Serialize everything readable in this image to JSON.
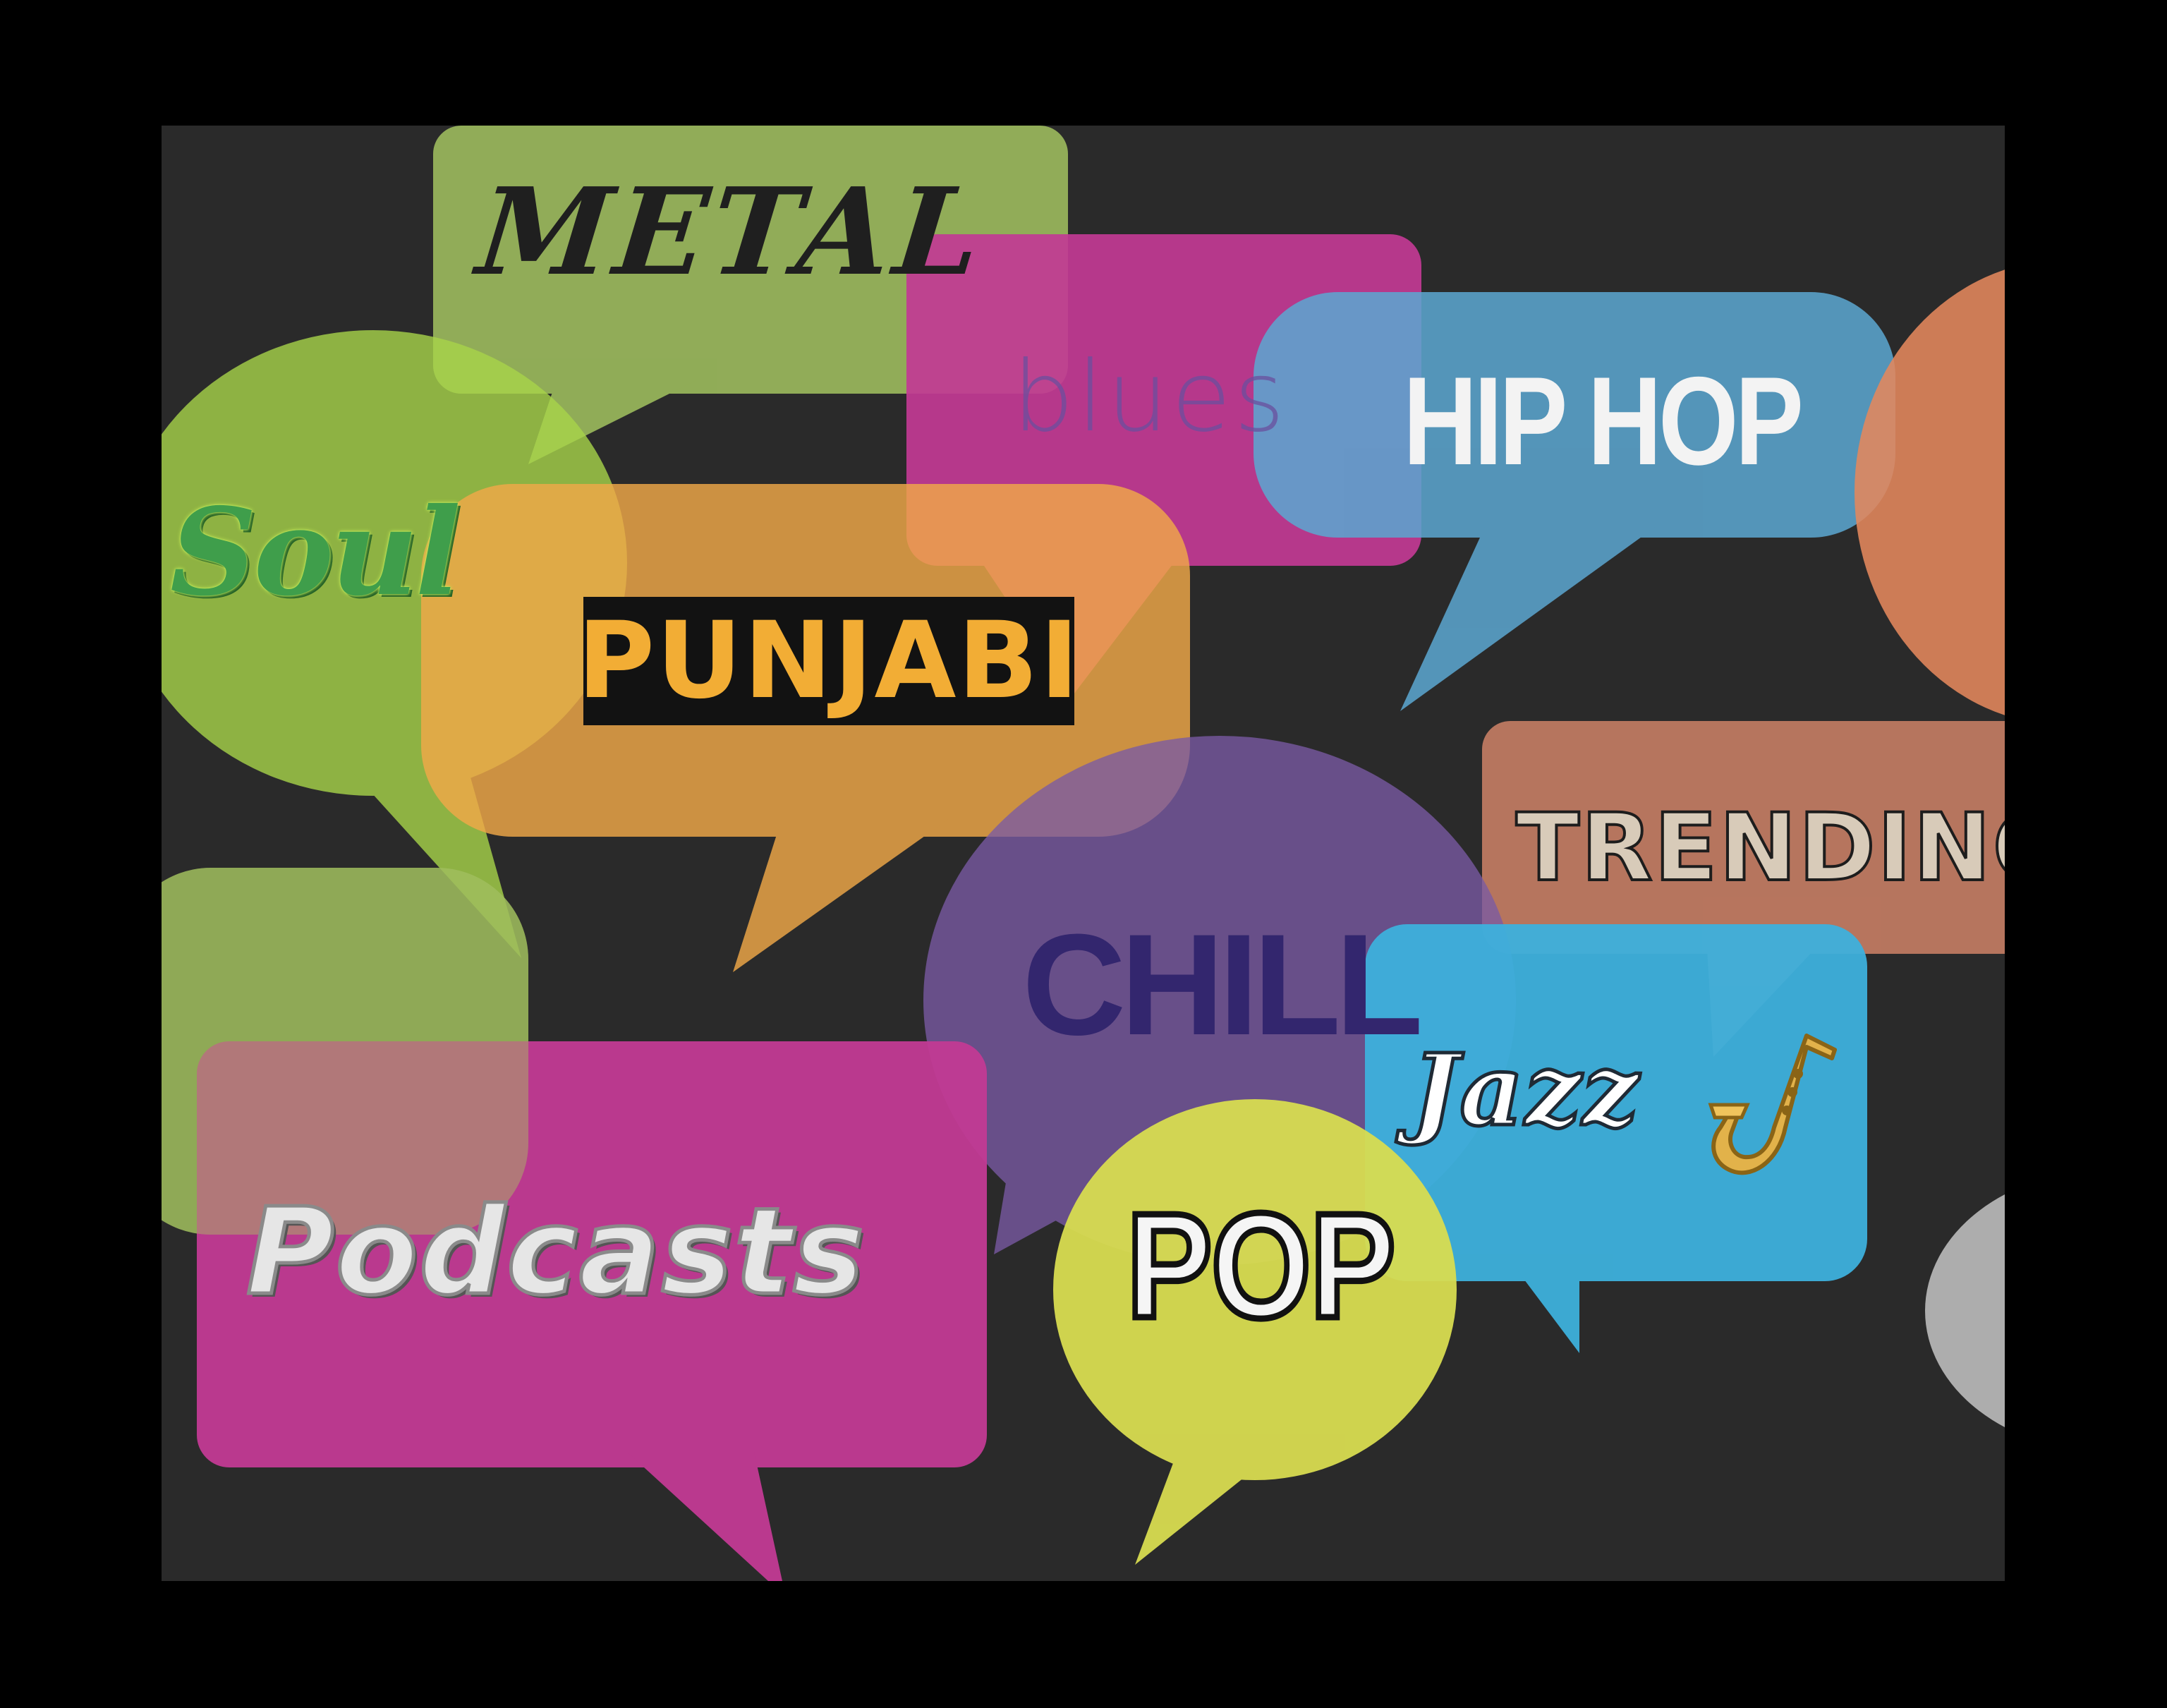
{
  "genres": {
    "metal": "METAL",
    "blues": "blues",
    "hiphop": "HIP HOP",
    "soul": "Soul",
    "punjabi": "PUNJABI",
    "trending": "TRENDING",
    "chill": "CHILL",
    "jazz": "Jazz",
    "podcasts": "Podcasts",
    "pop": "POP"
  },
  "colors": {
    "background": "#2a2a2a",
    "border": "#000000",
    "green": "#9fbe5e",
    "lime": "#a8d44a",
    "magenta": "#c23a94",
    "sky_blue": "#5ba6d0",
    "orange": "#f0a848",
    "salmon": "#e4875c",
    "purple": "#7a5aa4",
    "cyan": "#3db0dc",
    "yellow": "#d8dc50",
    "gray": "#bbbbbb"
  },
  "icons": [
    "saxophone-icon"
  ]
}
